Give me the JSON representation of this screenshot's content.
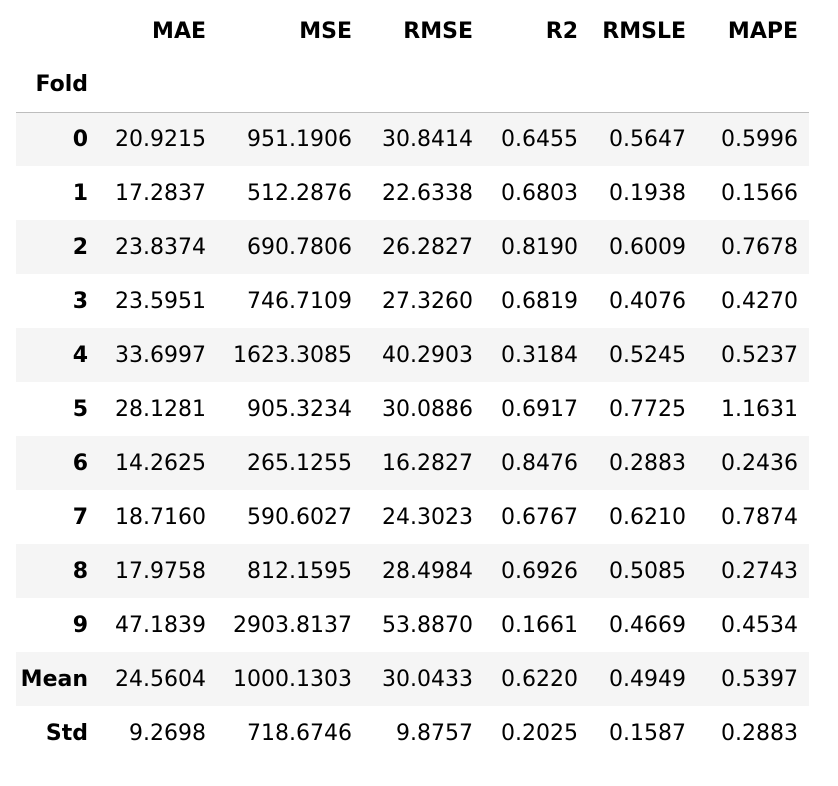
{
  "table": {
    "index_name": "Fold",
    "columns": [
      "MAE",
      "MSE",
      "RMSE",
      "R2",
      "RMSLE",
      "MAPE"
    ],
    "rows": [
      {
        "label": "0",
        "values": [
          "20.9215",
          "951.1906",
          "30.8414",
          "0.6455",
          "0.5647",
          "0.5996"
        ]
      },
      {
        "label": "1",
        "values": [
          "17.2837",
          "512.2876",
          "22.6338",
          "0.6803",
          "0.1938",
          "0.1566"
        ]
      },
      {
        "label": "2",
        "values": [
          "23.8374",
          "690.7806",
          "26.2827",
          "0.8190",
          "0.6009",
          "0.7678"
        ]
      },
      {
        "label": "3",
        "values": [
          "23.5951",
          "746.7109",
          "27.3260",
          "0.6819",
          "0.4076",
          "0.4270"
        ]
      },
      {
        "label": "4",
        "values": [
          "33.6997",
          "1623.3085",
          "40.2903",
          "0.3184",
          "0.5245",
          "0.5237"
        ]
      },
      {
        "label": "5",
        "values": [
          "28.1281",
          "905.3234",
          "30.0886",
          "0.6917",
          "0.7725",
          "1.1631"
        ]
      },
      {
        "label": "6",
        "values": [
          "14.2625",
          "265.1255",
          "16.2827",
          "0.8476",
          "0.2883",
          "0.2436"
        ]
      },
      {
        "label": "7",
        "values": [
          "18.7160",
          "590.6027",
          "24.3023",
          "0.6767",
          "0.6210",
          "0.7874"
        ]
      },
      {
        "label": "8",
        "values": [
          "17.9758",
          "812.1595",
          "28.4984",
          "0.6926",
          "0.5085",
          "0.2743"
        ]
      },
      {
        "label": "9",
        "values": [
          "47.1839",
          "2903.8137",
          "53.8870",
          "0.1661",
          "0.4669",
          "0.4534"
        ]
      },
      {
        "label": "Mean",
        "values": [
          "24.5604",
          "1000.1303",
          "30.0433",
          "0.6220",
          "0.4949",
          "0.5397"
        ]
      },
      {
        "label": "Std",
        "values": [
          "9.2698",
          "718.6746",
          "9.8757",
          "0.2025",
          "0.1587",
          "0.2883"
        ]
      }
    ]
  }
}
